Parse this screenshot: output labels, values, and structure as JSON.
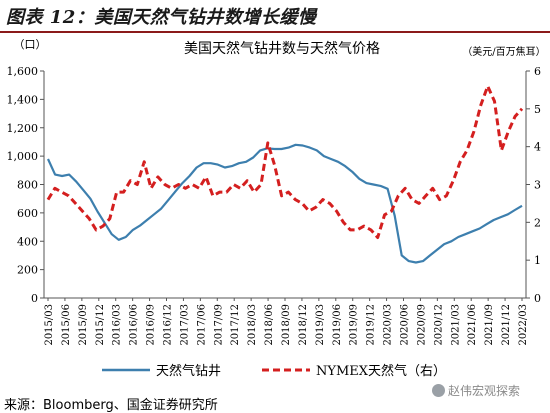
{
  "figure": {
    "title": "图表 12：美国天然气钻井数增长缓慢",
    "source": "来源：Bloomberg、国金证券研究所",
    "watermark": "赵伟宏观探索"
  },
  "colors": {
    "rig_line": "#3d7fae",
    "gas_line": "#d41f1f",
    "title_rule": "#8b1a1a"
  },
  "chart_data": {
    "type": "line",
    "title": "美国天然气钻井数与天然气价格",
    "left_axis_unit": "（口）",
    "right_axis_unit": "（美元/百万焦耳）",
    "y_left": {
      "lim": [
        0,
        1600
      ],
      "ticks": [
        "0",
        "200",
        "400",
        "600",
        "800",
        "1,000",
        "1,200",
        "1,400",
        "1,600"
      ]
    },
    "y_right": {
      "lim": [
        0,
        6
      ],
      "ticks": [
        "0",
        "1",
        "2",
        "3",
        "4",
        "5",
        "6"
      ]
    },
    "x_labels": [
      "2015/03",
      "2015/06",
      "2015/09",
      "2015/12",
      "2016/03",
      "2016/06",
      "2016/09",
      "2016/12",
      "2017/03",
      "2017/06",
      "2017/09",
      "2017/12",
      "2018/03",
      "2018/06",
      "2018/09",
      "2018/12",
      "2019/03",
      "2019/06",
      "2019/09",
      "2019/12",
      "2020/03",
      "2020/06",
      "2020/09",
      "2020/12",
      "2021/03",
      "2021/06",
      "2021/09",
      "2021/12",
      "2022/03"
    ],
    "grid": false,
    "legend_position": "bottom",
    "series": [
      {
        "name": "天然气钻井",
        "axis": "left",
        "style": "solid",
        "values": [
          980,
          870,
          860,
          870,
          820,
          760,
          700,
          610,
          530,
          450,
          410,
          430,
          480,
          510,
          550,
          590,
          630,
          690,
          750,
          810,
          860,
          920,
          950,
          950,
          940,
          920,
          930,
          950,
          960,
          990,
          1040,
          1055,
          1050,
          1050,
          1060,
          1080,
          1075,
          1060,
          1040,
          1000,
          980,
          960,
          930,
          890,
          840,
          810,
          800,
          790,
          770,
          580,
          300,
          260,
          250,
          260,
          300,
          340,
          380,
          400,
          430,
          450,
          470,
          490,
          520,
          550,
          570,
          590,
          620,
          650
        ]
      },
      {
        "name": "NYMEX天然气（右）",
        "axis": "right",
        "style": "dashed",
        "values": [
          2.6,
          2.9,
          2.8,
          2.7,
          2.5,
          2.3,
          2.1,
          1.8,
          1.9,
          2.1,
          2.8,
          2.8,
          3.1,
          3.0,
          3.6,
          2.9,
          3.2,
          3.0,
          2.9,
          3.0,
          2.9,
          3.0,
          2.9,
          3.2,
          2.7,
          2.8,
          2.8,
          3.0,
          2.9,
          3.1,
          2.8,
          3.0,
          4.1,
          3.5,
          2.7,
          2.8,
          2.6,
          2.5,
          2.3,
          2.4,
          2.6,
          2.5,
          2.3,
          2.0,
          1.8,
          1.8,
          1.9,
          1.8,
          1.6,
          2.2,
          2.3,
          2.7,
          2.9,
          2.6,
          2.5,
          2.7,
          2.9,
          2.6,
          2.7,
          3.1,
          3.6,
          3.9,
          4.4,
          5.1,
          5.6,
          5.2,
          3.9,
          4.4,
          4.8,
          5.0
        ]
      }
    ]
  }
}
